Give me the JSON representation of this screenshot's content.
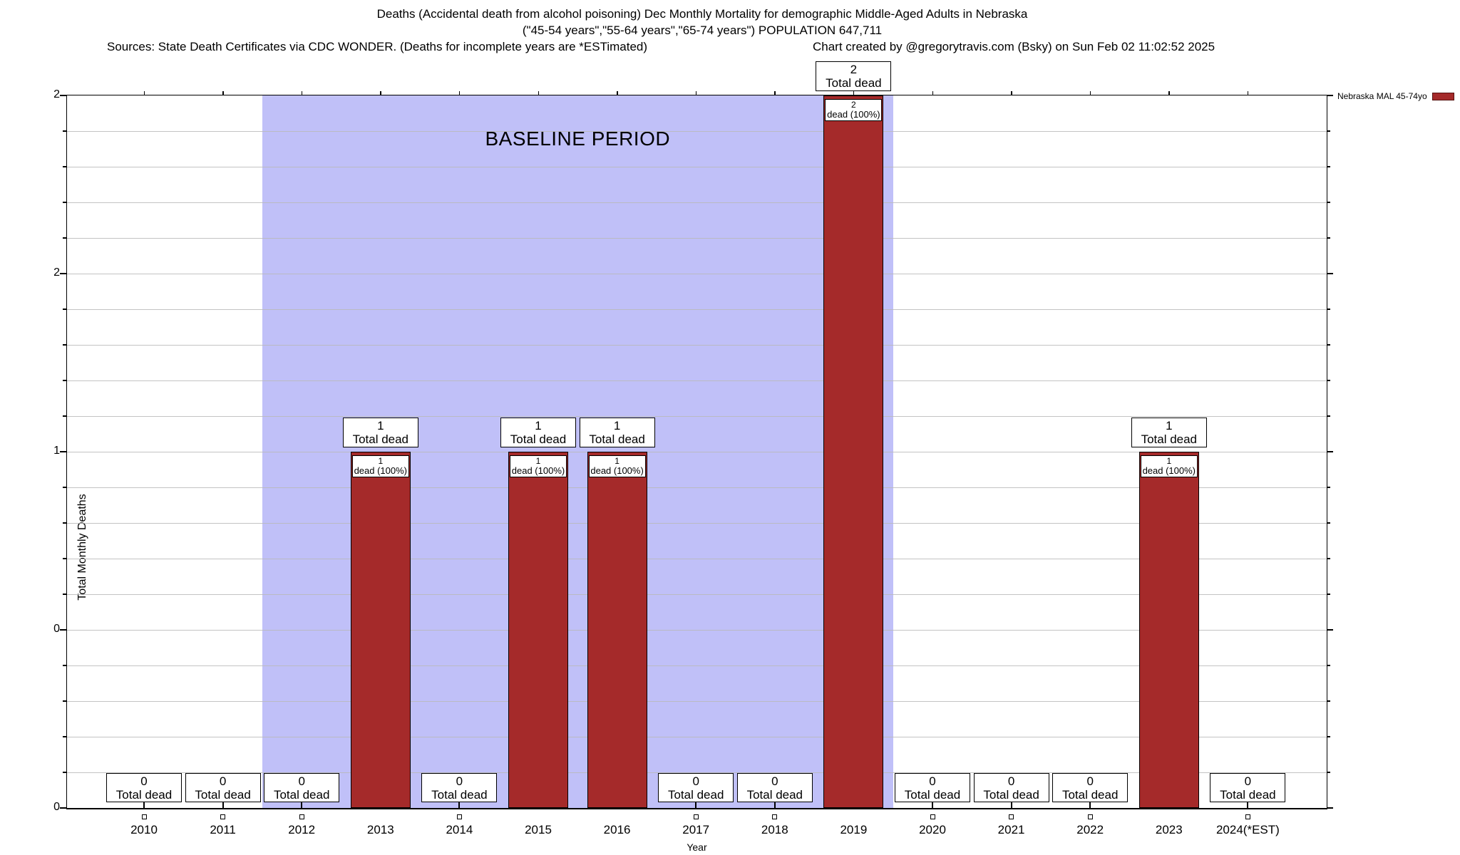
{
  "title": {
    "line1": "Deaths (Accidental death from alcohol poisoning) Dec Monthly Mortality for demographic Middle-Aged Adults in Nebraska",
    "line2": "(\"45-54 years\",\"55-64 years\",\"65-74 years\") POPULATION 647,711",
    "sources": "Sources: State Death Certificates via CDC WONDER. (Deaths for incomplete years are *ESTimated)",
    "credit": "Chart created by @gregorytravis.com (Bsky) on Sun Feb 02 11:02:52 2025"
  },
  "axes": {
    "y_title": "Total Monthly Deaths",
    "x_title": "Year",
    "y_tick_labels": [
      "2",
      "2",
      "1",
      "0",
      "0"
    ]
  },
  "legend": {
    "label": "Nebraska MAL 45-74yo",
    "position": "outside-top-right"
  },
  "baseline": {
    "label": "BASELINE PERIOD",
    "start_category": "2012",
    "end_category": "2019"
  },
  "annotations": {
    "total_dead_suffix": "Total dead",
    "inner_suffix": "dead (100%)"
  },
  "colors": {
    "bar": "#a52a2a",
    "baseline_region": "#c0c0f8",
    "grid": "#b9b9b9"
  },
  "chart_data": {
    "type": "bar",
    "title": "Deaths (Accidental death from alcohol poisoning) Dec Monthly Mortality for demographic Middle-Aged Adults in Nebraska",
    "subtitle": "(\"45-54 years\",\"55-64 years\",\"65-74 years\") POPULATION 647,711",
    "categories": [
      "2010",
      "2011",
      "2012",
      "2013",
      "2014",
      "2015",
      "2016",
      "2017",
      "2018",
      "2019",
      "2020",
      "2021",
      "2022",
      "2023",
      "2024(*EST)"
    ],
    "series": [
      {
        "name": "Nebraska MAL 45-74yo",
        "values": [
          0,
          0,
          0,
          1,
          0,
          1,
          1,
          0,
          0,
          2,
          0,
          0,
          0,
          1,
          0
        ]
      }
    ],
    "bar_value_labels": [
      "0",
      "0",
      "0",
      "1",
      "0",
      "1",
      "1",
      "0",
      "0",
      "2",
      "0",
      "0",
      "0",
      "1",
      "0"
    ],
    "xlabel": "Year",
    "ylabel": "Total Monthly Deaths",
    "ylim": [
      0,
      2
    ],
    "grid": true,
    "legend_position": "outside-top-right",
    "baseline_region": {
      "label": "BASELINE PERIOD",
      "from": "2012",
      "to": "2019"
    }
  }
}
